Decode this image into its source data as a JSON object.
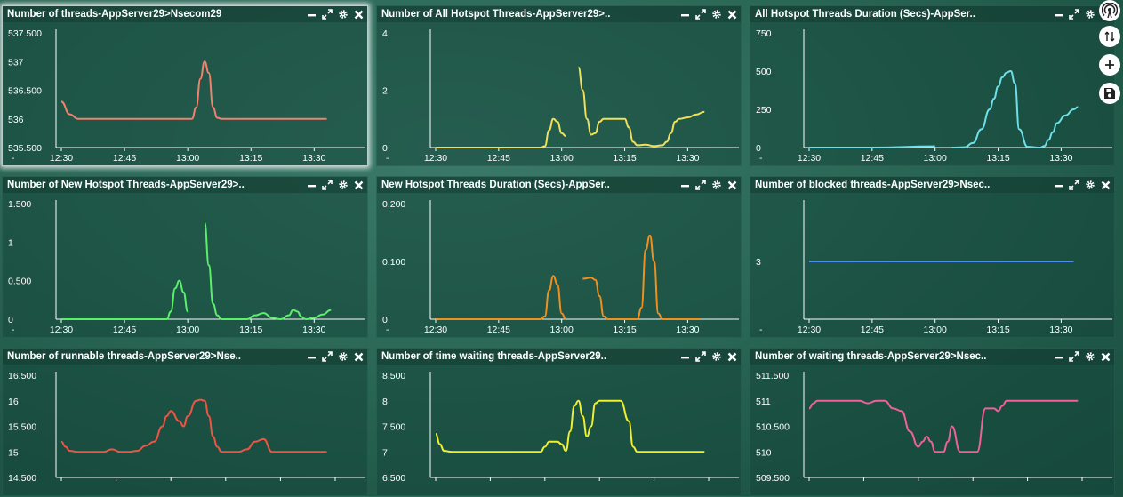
{
  "panels": [
    {
      "title": "Number of threads-AppServer29>Nsecom29",
      "selected": true,
      "chart_data": {
        "type": "line",
        "color": "#f0826e",
        "y_ticks": [
          "537.500",
          "537",
          "536.500",
          "536",
          "535.500"
        ],
        "ylim": [
          535.5,
          537.5
        ],
        "x_ticks": [
          "12:30",
          "12:45",
          "13:00",
          "13:15",
          "13:30"
        ],
        "xlim": [
          0,
          65
        ],
        "series": [
          {
            "x": [
              0,
              2,
              4,
              8,
              15,
              20,
              25,
              28,
              31,
              32,
              33,
              34,
              35,
              36,
              37,
              38,
              40,
              45,
              55,
              63
            ],
            "y": [
              536.3,
              536.08,
              536.0,
              536.0,
              536.0,
              536.0,
              536.0,
              536.0,
              536.0,
              536.2,
              536.7,
              537.0,
              536.8,
              536.2,
              536.02,
              536.0,
              536.0,
              536.0,
              536.0,
              536.0
            ]
          }
        ]
      }
    },
    {
      "title": "Number of All Hotspot Threads-AppServer29>..",
      "selected": false,
      "chart_data": {
        "type": "line",
        "color": "#f1e05a",
        "y_ticks": [
          "4",
          "2",
          "0"
        ],
        "ylim": [
          0,
          4
        ],
        "x_ticks": [
          "12:30",
          "12:45",
          "13:00",
          "13:15",
          "13:30"
        ],
        "xlim": [
          0,
          65
        ],
        "series": [
          {
            "x": [
              0,
              10,
              20,
              25,
              26,
              27,
              28,
              29,
              30,
              31
            ],
            "y": [
              0,
              0,
              0,
              0,
              0.05,
              0.6,
              1.0,
              0.9,
              0.5,
              0.4
            ]
          },
          {
            "x": [
              34,
              35,
              36,
              37,
              38,
              39,
              40,
              41,
              44,
              45,
              46,
              47,
              48,
              50,
              52,
              54,
              55,
              56,
              57,
              58,
              60,
              62,
              64
            ],
            "y": [
              2.8,
              2.0,
              1.0,
              0.45,
              0.5,
              0.9,
              1.0,
              1.0,
              1.0,
              1.0,
              0.7,
              0.2,
              0.08,
              0.1,
              0.05,
              0.08,
              0.2,
              0.5,
              0.9,
              1.0,
              1.05,
              1.15,
              1.25
            ]
          }
        ]
      }
    },
    {
      "title": "All Hotspot Threads Duration (Secs)-AppSer..",
      "selected": false,
      "chart_data": {
        "type": "line",
        "color": "#6ee0ea",
        "y_ticks": [
          "750",
          "500",
          "250",
          "0"
        ],
        "ylim": [
          0,
          750
        ],
        "x_ticks": [
          "12:30",
          "12:45",
          "13:00",
          "13:15",
          "13:30"
        ],
        "xlim": [
          0,
          65
        ],
        "series": [
          {
            "x": [
              0,
              15,
              30
            ],
            "y": [
              0,
              0,
              8
            ]
          },
          {
            "x": [
              34,
              37,
              39,
              41,
              43,
              44,
              45,
              46,
              47,
              48,
              49,
              50,
              52,
              55,
              56,
              57,
              58,
              59,
              61,
              63,
              64
            ],
            "y": [
              0,
              2,
              30,
              120,
              250,
              320,
              400,
              460,
              490,
              500,
              420,
              120,
              5,
              0,
              10,
              50,
              100,
              160,
              210,
              250,
              265
            ]
          }
        ]
      }
    },
    {
      "title": "Number of New Hotspot Threads-AppServer29>..",
      "selected": false,
      "chart_data": {
        "type": "line",
        "color": "#5cef6a",
        "y_ticks": [
          "1.500",
          "1",
          "0.500",
          "0"
        ],
        "ylim": [
          0,
          1.5
        ],
        "x_ticks": [
          "12:30",
          "12:45",
          "13:00",
          "13:15",
          "13:30"
        ],
        "xlim": [
          0,
          65
        ],
        "series": [
          {
            "x": [
              0,
              10,
              20,
              25,
              26,
              27,
              28,
              29,
              30
            ],
            "y": [
              0,
              0,
              0,
              0,
              0.1,
              0.4,
              0.5,
              0.35,
              0.1
            ]
          },
          {
            "x": [
              34,
              35,
              36,
              37,
              38,
              40,
              44,
              46,
              48,
              50,
              52,
              54,
              55,
              56,
              57,
              58,
              60,
              62,
              64
            ],
            "y": [
              1.25,
              0.7,
              0.2,
              0.05,
              0.0,
              0.0,
              0.0,
              0.05,
              0.08,
              0.02,
              0.0,
              0.05,
              0.12,
              0.1,
              0.03,
              0.0,
              0.02,
              0.06,
              0.12
            ]
          }
        ]
      }
    },
    {
      "title": "New Hotspot Threads Duration (Secs)-AppSer..",
      "selected": false,
      "chart_data": {
        "type": "line",
        "color": "#f0901e",
        "y_ticks": [
          "0.200",
          "0.100",
          "0"
        ],
        "ylim": [
          0,
          0.2
        ],
        "x_ticks": [
          "12:30",
          "12:45",
          "13:00",
          "13:15",
          "13:30"
        ],
        "xlim": [
          0,
          65
        ],
        "series": [
          {
            "x": [
              0,
              10,
              20,
              25,
              26,
              27,
              28,
              29,
              30,
              31
            ],
            "y": [
              0,
              0,
              0,
              0,
              0.005,
              0.05,
              0.075,
              0.06,
              0.01,
              0.0
            ]
          },
          {
            "x": [
              35,
              37,
              38,
              39,
              40,
              41,
              42,
              43,
              44,
              46,
              48,
              49,
              50,
              51,
              52,
              53,
              54,
              56,
              58,
              60,
              63
            ],
            "y": [
              0.07,
              0.072,
              0.068,
              0.04,
              0.005,
              0.0,
              0.0,
              0.0,
              0.0,
              0.0,
              0.0,
              0.02,
              0.12,
              0.145,
              0.1,
              0.01,
              0.0,
              0.0,
              0.0,
              0.0,
              0.0
            ]
          }
        ]
      }
    },
    {
      "title": "Number of blocked threads-AppServer29>Nsec..",
      "selected": false,
      "chart_data": {
        "type": "line",
        "color": "#4a8fe8",
        "y_ticks": [
          "3"
        ],
        "ylim": [
          2,
          4
        ],
        "x_ticks": [
          "12:30",
          "12:45",
          "13:00",
          "13:15",
          "13:30"
        ],
        "xlim": [
          0,
          65
        ],
        "series": [
          {
            "x": [
              0,
              63
            ],
            "y": [
              3,
              3
            ]
          }
        ]
      }
    },
    {
      "title": "Number of runnable threads-AppServer29>Nse..",
      "selected": false,
      "chart_data": {
        "type": "line",
        "color": "#ef5545",
        "y_ticks": [
          "16.500",
          "16",
          "15.500",
          "15",
          "14.500"
        ],
        "ylim": [
          14.5,
          16.5
        ],
        "x_ticks": [
          "",
          "",
          "",
          "",
          "",
          ""
        ],
        "xlim": [
          0,
          65
        ],
        "series": [
          {
            "x": [
              0,
              1,
              2,
              4,
              8,
              10,
              12,
              14,
              16,
              18,
              20,
              22,
              24,
              25,
              26,
              28,
              29,
              30,
              32,
              33,
              34,
              35,
              36,
              37,
              38,
              40,
              42,
              44,
              46,
              48,
              50,
              51,
              52,
              54,
              58,
              63
            ],
            "y": [
              15.2,
              15.1,
              15.02,
              15.0,
              15.0,
              15.0,
              15.05,
              15.0,
              15.0,
              15.02,
              15.12,
              15.2,
              15.5,
              15.7,
              15.8,
              15.6,
              15.5,
              15.7,
              16.0,
              16.02,
              16.0,
              15.7,
              15.3,
              15.1,
              15.0,
              15.0,
              15.0,
              15.05,
              15.2,
              15.25,
              15.0,
              15.0,
              15.0,
              15.0,
              15.0,
              15.0
            ]
          }
        ]
      }
    },
    {
      "title": "Number of time waiting threads-AppServer29..",
      "selected": false,
      "chart_data": {
        "type": "line",
        "color": "#f0f030",
        "y_ticks": [
          "8.500",
          "8",
          "7.500",
          "7",
          "6.500"
        ],
        "ylim": [
          6.5,
          8.5
        ],
        "x_ticks": [
          "",
          "",
          "",
          "",
          "",
          ""
        ],
        "xlim": [
          0,
          65
        ],
        "series": [
          {
            "x": [
              0,
              1,
              2,
              4,
              10,
              20,
              25,
              26,
              27,
              29,
              30,
              31,
              32,
              33,
              34,
              35,
              36,
              37,
              38,
              39,
              40,
              41,
              44,
              46,
              47,
              48,
              50,
              55,
              60,
              64
            ],
            "y": [
              7.35,
              7.15,
              7.02,
              7.0,
              7.0,
              7.0,
              7.0,
              7.1,
              7.2,
              7.2,
              7.15,
              7.02,
              7.4,
              7.9,
              8.0,
              7.7,
              7.3,
              7.5,
              7.95,
              8.0,
              8.0,
              8.0,
              8.0,
              7.6,
              7.1,
              7.0,
              7.0,
              7.0,
              7.0,
              7.0
            ]
          }
        ]
      }
    },
    {
      "title": "Number of waiting threads-AppServer29>Nsec..",
      "selected": false,
      "chart_data": {
        "type": "line",
        "color": "#f0609a",
        "y_ticks": [
          "511.500",
          "511",
          "510.500",
          "510",
          "509.500"
        ],
        "ylim": [
          509.5,
          511.5
        ],
        "x_ticks": [
          "",
          "",
          "",
          "",
          "",
          ""
        ],
        "xlim": [
          0,
          65
        ],
        "series": [
          {
            "x": [
              0,
              1,
              2,
              4,
              8,
              12,
              14,
              16,
              18,
              20,
              22,
              24,
              26,
              27,
              28,
              29,
              30,
              31,
              32,
              33,
              34,
              36,
              37,
              38,
              39,
              40,
              42,
              44,
              45,
              46,
              47,
              48,
              50,
              52,
              54,
              58,
              62,
              64
            ],
            "y": [
              510.85,
              510.95,
              511.0,
              511.0,
              511.0,
              511.0,
              510.95,
              511.0,
              511.0,
              510.85,
              510.8,
              510.4,
              510.1,
              510.2,
              510.3,
              510.2,
              510.0,
              510.0,
              510.0,
              510.2,
              510.5,
              510.0,
              510.0,
              510.0,
              510.0,
              510.0,
              510.85,
              510.85,
              510.8,
              510.9,
              511.0,
              511.0,
              511.0,
              511.0,
              511.0,
              511.0,
              511.0,
              511.0
            ]
          }
        ]
      }
    }
  ],
  "side_buttons": [
    {
      "name": "broadcast-icon"
    },
    {
      "name": "swap-vertical-icon"
    },
    {
      "name": "plus-icon"
    },
    {
      "name": "save-icon"
    }
  ]
}
